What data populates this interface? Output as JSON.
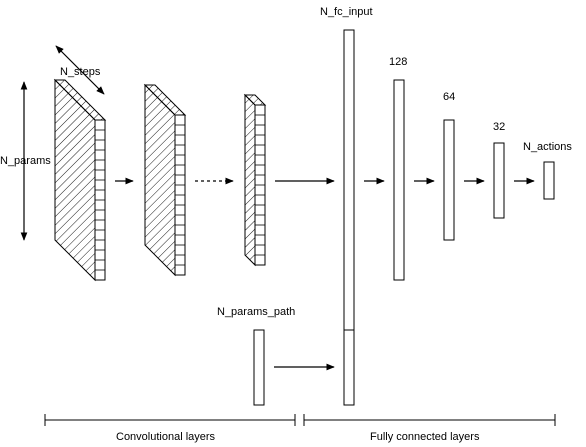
{
  "labels": {
    "n_fc_input": "N_fc_input",
    "n_steps": "N_steps",
    "n_params": "N_params",
    "n_params_path": "N_params_path",
    "n_actions": "N_actions",
    "fc_128": "128",
    "fc_64": "64",
    "fc_32": "32",
    "convolutional_layers": "Convolutional layers",
    "fully_connected_layers": "Fully connected layers"
  },
  "colors": {
    "stroke": "#000000",
    "fill": "#ffffff"
  }
}
